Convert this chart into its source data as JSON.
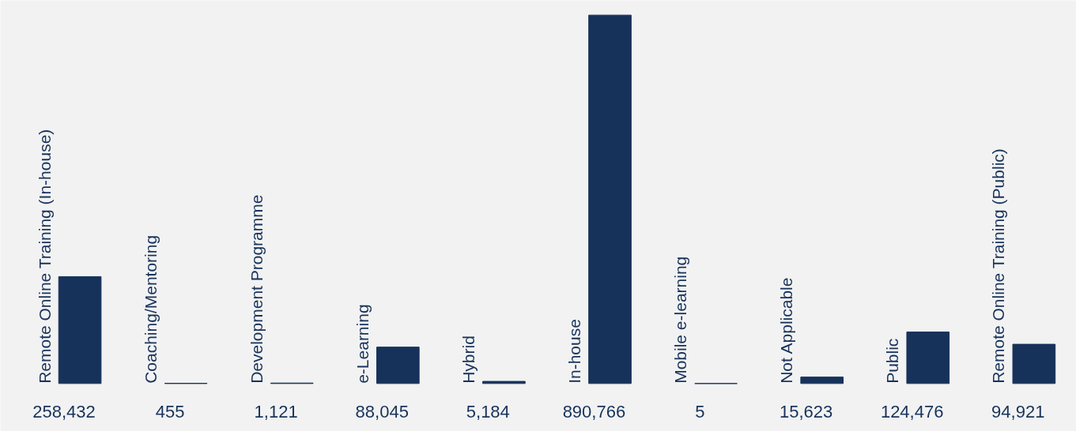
{
  "chart_data": {
    "type": "bar",
    "categories": [
      "Remote Online Training (In-house)",
      "Coaching/Mentoring",
      "Development Programme",
      "e-Learning",
      "Hybrid",
      "In-house",
      "Mobile e-learning",
      "Not Applicable",
      "Public",
      "Remote Online Training (Public)"
    ],
    "values": [
      258432,
      455,
      1121,
      88045,
      5184,
      890766,
      5,
      15623,
      124476,
      94921
    ],
    "value_labels": [
      "258,432",
      "455",
      "1,121",
      "88,045",
      "5,184",
      "890,766",
      "5",
      "15,623",
      "124,476",
      "94,921"
    ],
    "color": "#17325a",
    "grid": false,
    "tick_labels": false
  }
}
